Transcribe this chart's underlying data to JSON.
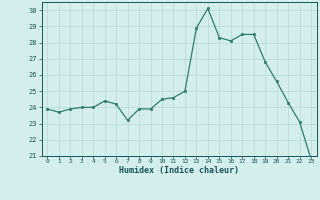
{
  "x": [
    0,
    1,
    2,
    3,
    4,
    5,
    6,
    7,
    8,
    9,
    10,
    11,
    12,
    13,
    14,
    15,
    16,
    17,
    18,
    19,
    20,
    21,
    22,
    23
  ],
  "y": [
    23.9,
    23.7,
    23.9,
    24.0,
    24.0,
    24.4,
    24.2,
    23.2,
    23.9,
    23.9,
    24.5,
    24.6,
    25.0,
    28.9,
    30.1,
    28.3,
    28.1,
    28.5,
    28.5,
    26.8,
    25.6,
    24.3,
    23.1,
    20.8
  ],
  "line_color": "#2e7d6e",
  "marker_color": "#2e7d6e",
  "bg_color": "#d4eeee",
  "grid_color": "#b8d8d8",
  "xlabel": "Humidex (Indice chaleur)",
  "xlim": [
    -0.5,
    23.5
  ],
  "ylim": [
    21,
    30.5
  ],
  "yticks": [
    21,
    22,
    23,
    24,
    25,
    26,
    27,
    28,
    29,
    30
  ],
  "xticks": [
    0,
    1,
    2,
    3,
    4,
    5,
    6,
    7,
    8,
    9,
    10,
    11,
    12,
    13,
    14,
    15,
    16,
    17,
    18,
    19,
    20,
    21,
    22,
    23
  ]
}
